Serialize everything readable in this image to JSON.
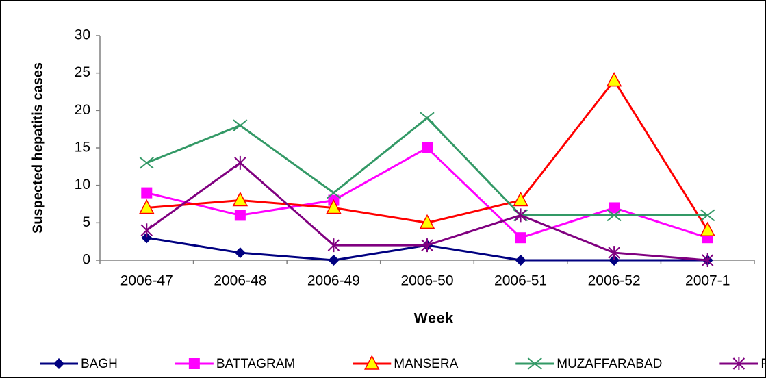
{
  "chart_data": {
    "type": "line",
    "x_label": "Week",
    "y_label": "Suspected hepatitis cases",
    "categories": [
      "2006-47",
      "2006-48",
      "2006-49",
      "2006-50",
      "2006-51",
      "2006-52",
      "2007-1"
    ],
    "series": [
      {
        "name": "BAGH",
        "color": "#000080",
        "marker": "diamond",
        "values": [
          3,
          1,
          0,
          2,
          0,
          0,
          0
        ]
      },
      {
        "name": "BATTAGRAM",
        "color": "#ff00ff",
        "marker": "square",
        "values": [
          9,
          6,
          8,
          15,
          3,
          7,
          3
        ]
      },
      {
        "name": "MANSERA",
        "color": "#ff0000",
        "marker": "triangle",
        "marker_fill": "#ffff00",
        "values": [
          7,
          8,
          7,
          5,
          8,
          24,
          4
        ]
      },
      {
        "name": "MUZAFFARABAD",
        "color": "#339966",
        "marker": "x",
        "values": [
          13,
          18,
          9,
          19,
          6,
          6,
          6
        ]
      },
      {
        "name": "POONCH",
        "color": "#800080",
        "marker": "star",
        "values": [
          4,
          13,
          2,
          2,
          6,
          1,
          0
        ]
      }
    ],
    "ylim": [
      0,
      30
    ],
    "yticks": [
      0,
      5,
      10,
      15,
      20,
      25,
      30
    ],
    "legend": "bottom"
  }
}
